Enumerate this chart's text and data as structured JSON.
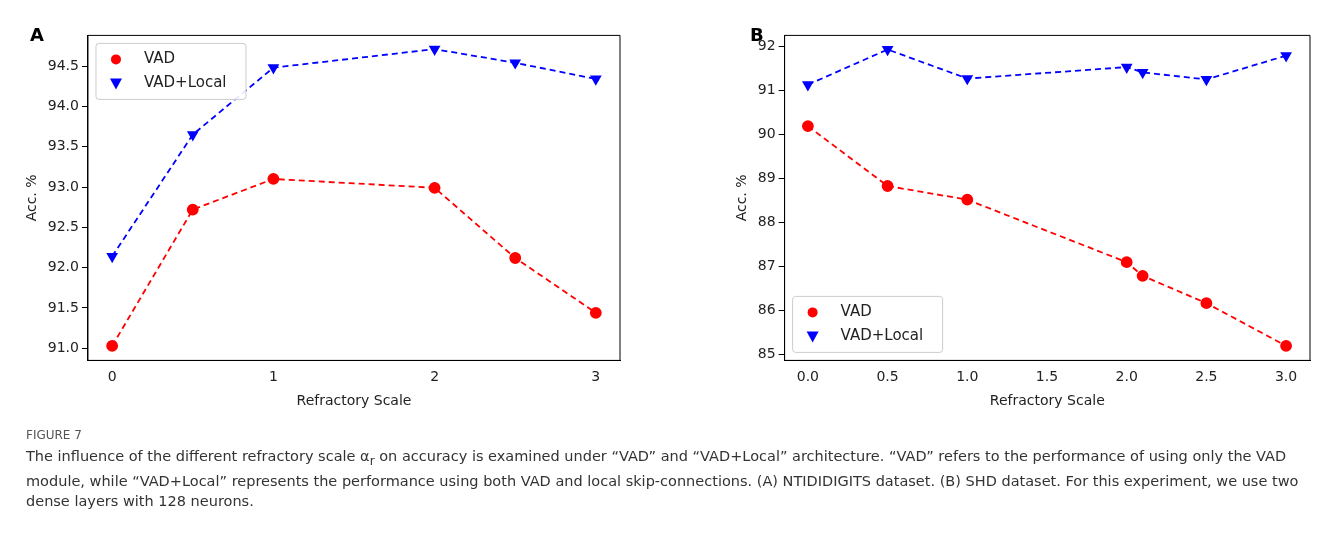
{
  "chart_data": [
    {
      "type": "line",
      "title": "A",
      "xlabel": "Refractory Scale",
      "ylabel": "Acc. %",
      "x": [
        0,
        0.5,
        1,
        2,
        2.5,
        3
      ],
      "xlim": [
        -0.15,
        3.15
      ],
      "xticks": [
        0,
        1,
        2,
        3
      ],
      "ylim": [
        90.85,
        94.88
      ],
      "yticks": [
        {
          "value": 91.0,
          "label": "91.0"
        },
        {
          "value": 91.5,
          "label": "91.5"
        },
        {
          "value": 92.0,
          "label": "92.0"
        },
        {
          "value": 92.5,
          "label": "92.5"
        },
        {
          "value": 93.0,
          "label": "93.0"
        },
        {
          "value": 93.5,
          "label": "93.5"
        },
        {
          "value": 94.0,
          "label": "94.0"
        },
        {
          "value": 94.5,
          "label": "94.5"
        }
      ],
      "grid": false,
      "legend": "top left",
      "line_style": "dashed",
      "series": [
        {
          "name": "VAD",
          "color": "#ff0000",
          "marker": "circle",
          "values": [
            91.03,
            92.72,
            93.1,
            92.99,
            92.12,
            91.44
          ]
        },
        {
          "name": "VAD+Local",
          "color": "#0000ff",
          "marker": "triangle",
          "values": [
            92.14,
            93.65,
            94.48,
            94.71,
            94.54,
            94.34
          ]
        }
      ],
      "annotations": [
        "FIGURE 7",
        "The influence of the different refractory scale α$_{r}$ on accuracy is examined under “VAD” and “VAD+Local” architecture. “VAD” refers to the performance of using only the VAD module, while “VAD+Local” represents the performance using both VAD and local skip-connections. (A) NTIDIDIGITS dataset. (B) SHD dataset. For this experiment, we use two dense layers with 128 neurons."
      ]
    },
    {
      "type": "line",
      "title": "B",
      "xlabel": "Refractory Scale",
      "ylabel": "Acc. %",
      "x": [
        0,
        0.5,
        1,
        2,
        2.1,
        2.5,
        3
      ],
      "xlim": [
        -0.146,
        3.15
      ],
      "xticks": [
        {
          "value": 0,
          "label": "0.0"
        },
        {
          "value": 0.5,
          "label": "0.5"
        },
        {
          "value": 1,
          "label": "1.0"
        },
        {
          "value": 1.5,
          "label": "1.5"
        },
        {
          "value": 2,
          "label": "2.0"
        },
        {
          "value": 2.5,
          "label": "2.5"
        },
        {
          "value": 3,
          "label": "3.0"
        }
      ],
      "ylim": [
        84.87,
        92.25
      ],
      "yticks": [
        85,
        86,
        87,
        88,
        89,
        90,
        91,
        92
      ],
      "grid": false,
      "legend": "bottom left",
      "line_style": "dashed",
      "series": [
        {
          "name": "VAD",
          "color": "#ff0000",
          "marker": "circle",
          "values": [
            90.19,
            88.83,
            88.52,
            87.1,
            86.79,
            86.17,
            85.2
          ]
        },
        {
          "name": "VAD+Local",
          "color": "#0000ff",
          "marker": "triangle",
          "values": [
            91.13,
            91.93,
            91.27,
            91.53,
            91.41,
            91.25,
            91.79
          ]
        }
      ]
    }
  ]
}
